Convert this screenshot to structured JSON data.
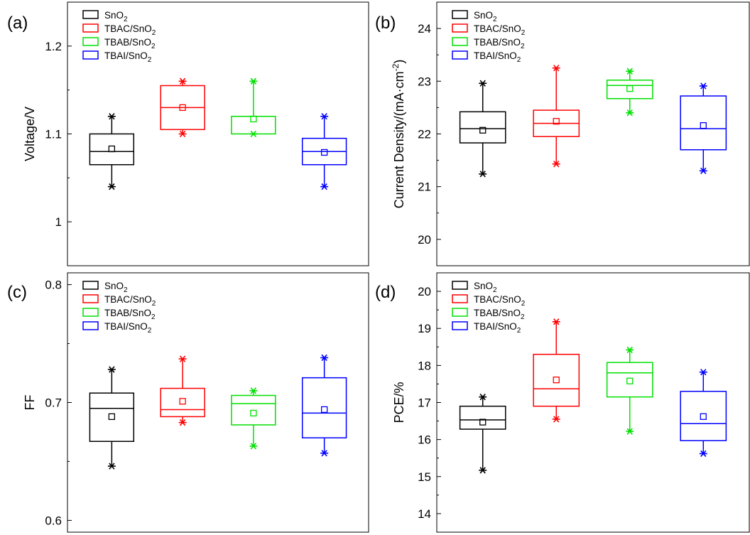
{
  "chart_data": [
    {
      "panel_label": "(a)",
      "type": "box",
      "ylabel": "Voltage/V",
      "ylim": [
        0.95,
        1.25
      ],
      "yticks": [
        1.0,
        1.1,
        1.2
      ],
      "ytick_labels": [
        "1",
        "1.1",
        "1.2"
      ],
      "minor_ticks": true,
      "series": [
        {
          "name": "SnO2",
          "name_base": "SnO",
          "name_sub": "2",
          "color": "#000000",
          "q1": 1.065,
          "median": 1.08,
          "q3": 1.1,
          "mean": 1.083,
          "whisker_low": 1.04,
          "whisker_high": 1.12,
          "min": 1.04,
          "max": 1.12
        },
        {
          "name": "TBAC/SnO2",
          "name_base": "TBAC/SnO",
          "name_sub": "2",
          "color": "#ff0000",
          "q1": 1.105,
          "median": 1.13,
          "q3": 1.155,
          "mean": 1.13,
          "whisker_low": 1.1,
          "whisker_high": 1.16,
          "min": 1.1,
          "max": 1.16
        },
        {
          "name": "TBAB/SnO2",
          "name_base": "TBAB/SnO",
          "name_sub": "2",
          "color": "#00e000",
          "q1": 1.1,
          "median": 1.12,
          "q3": 1.12,
          "mean": 1.117,
          "whisker_low": 1.1,
          "whisker_high": 1.16,
          "min": 1.1,
          "max": 1.16
        },
        {
          "name": "TBAI/SnO2",
          "name_base": "TBAI/SnO",
          "name_sub": "2",
          "color": "#0000ff",
          "q1": 1.065,
          "median": 1.08,
          "q3": 1.095,
          "mean": 1.079,
          "whisker_low": 1.04,
          "whisker_high": 1.12,
          "min": 1.04,
          "max": 1.12
        }
      ]
    },
    {
      "panel_label": "(b)",
      "type": "box",
      "ylabel": "Current Density/(mA·cm⁻²)",
      "ylabel_base": "Current Density/(mA·cm",
      "ylabel_sup": "-2",
      "ylabel_tail": ")",
      "ylim": [
        19.5,
        24.5
      ],
      "yticks": [
        20,
        21,
        22,
        23,
        24
      ],
      "ytick_labels": [
        "20",
        "21",
        "22",
        "23",
        "24"
      ],
      "minor_ticks": true,
      "series": [
        {
          "name": "SnO2",
          "name_base": "SnO",
          "name_sub": "2",
          "color": "#000000",
          "q1": 21.83,
          "median": 22.1,
          "q3": 22.42,
          "mean": 22.07,
          "whisker_low": 21.24,
          "whisker_high": 22.96,
          "min": 21.24,
          "max": 22.96
        },
        {
          "name": "TBAC/SnO2",
          "name_base": "TBAC/SnO",
          "name_sub": "2",
          "color": "#ff0000",
          "q1": 21.95,
          "median": 22.2,
          "q3": 22.45,
          "mean": 22.24,
          "whisker_low": 21.43,
          "whisker_high": 23.25,
          "min": 21.43,
          "max": 23.25
        },
        {
          "name": "TBAB/SnO2",
          "name_base": "TBAB/SnO",
          "name_sub": "2",
          "color": "#00e000",
          "q1": 22.67,
          "median": 22.92,
          "q3": 23.02,
          "mean": 22.86,
          "whisker_low": 22.4,
          "whisker_high": 23.19,
          "min": 22.4,
          "max": 23.19
        },
        {
          "name": "TBAI/SnO2",
          "name_base": "TBAI/SnO",
          "name_sub": "2",
          "color": "#0000ff",
          "q1": 21.7,
          "median": 22.1,
          "q3": 22.72,
          "mean": 22.16,
          "whisker_low": 21.3,
          "whisker_high": 22.91,
          "min": 21.3,
          "max": 22.91
        }
      ]
    },
    {
      "panel_label": "(c)",
      "type": "box",
      "ylabel": "FF",
      "ylim": [
        0.59,
        0.81
      ],
      "yticks": [
        0.6,
        0.7,
        0.8
      ],
      "ytick_labels": [
        "0.6",
        "0.7",
        "0.8"
      ],
      "minor_ticks": true,
      "series": [
        {
          "name": "SnO2",
          "name_base": "SnO",
          "name_sub": "2",
          "color": "#000000",
          "q1": 0.667,
          "median": 0.695,
          "q3": 0.708,
          "mean": 0.688,
          "whisker_low": 0.646,
          "whisker_high": 0.728,
          "min": 0.646,
          "max": 0.728
        },
        {
          "name": "TBAC/SnO2",
          "name_base": "TBAC/SnO",
          "name_sub": "2",
          "color": "#ff0000",
          "q1": 0.688,
          "median": 0.694,
          "q3": 0.712,
          "mean": 0.701,
          "whisker_low": 0.683,
          "whisker_high": 0.737,
          "min": 0.683,
          "max": 0.737
        },
        {
          "name": "TBAB/SnO2",
          "name_base": "TBAB/SnO",
          "name_sub": "2",
          "color": "#00e000",
          "q1": 0.681,
          "median": 0.699,
          "q3": 0.706,
          "mean": 0.691,
          "whisker_low": 0.663,
          "whisker_high": 0.71,
          "min": 0.663,
          "max": 0.71
        },
        {
          "name": "TBAI/SnO2",
          "name_base": "TBAI/SnO",
          "name_sub": "2",
          "color": "#0000ff",
          "q1": 0.67,
          "median": 0.691,
          "q3": 0.721,
          "mean": 0.694,
          "whisker_low": 0.657,
          "whisker_high": 0.738,
          "min": 0.657,
          "max": 0.738
        }
      ]
    },
    {
      "panel_label": "(d)",
      "type": "box",
      "ylabel": "PCE/%",
      "ylim": [
        13.5,
        20.5
      ],
      "yticks": [
        14,
        15,
        16,
        17,
        18,
        19,
        20
      ],
      "ytick_labels": [
        "14",
        "15",
        "16",
        "17",
        "18",
        "19",
        "20"
      ],
      "minor_ticks": true,
      "series": [
        {
          "name": "SnO2",
          "name_base": "SnO",
          "name_sub": "2",
          "color": "#000000",
          "q1": 16.28,
          "median": 16.53,
          "q3": 16.9,
          "mean": 16.47,
          "whisker_low": 15.17,
          "whisker_high": 17.15,
          "min": 15.17,
          "max": 17.15
        },
        {
          "name": "TBAC/SnO2",
          "name_base": "TBAC/SnO",
          "name_sub": "2",
          "color": "#ff0000",
          "q1": 16.9,
          "median": 17.37,
          "q3": 18.3,
          "mean": 17.61,
          "whisker_low": 16.55,
          "whisker_high": 19.18,
          "min": 16.55,
          "max": 19.18
        },
        {
          "name": "TBAB/SnO2",
          "name_base": "TBAB/SnO",
          "name_sub": "2",
          "color": "#00e000",
          "q1": 17.15,
          "median": 17.8,
          "q3": 18.08,
          "mean": 17.58,
          "whisker_low": 16.22,
          "whisker_high": 18.42,
          "min": 16.22,
          "max": 18.42
        },
        {
          "name": "TBAI/SnO2",
          "name_base": "TBAI/SnO",
          "name_sub": "2",
          "color": "#0000ff",
          "q1": 15.97,
          "median": 16.43,
          "q3": 17.3,
          "mean": 16.62,
          "whisker_low": 15.62,
          "whisker_high": 17.82,
          "min": 15.62,
          "max": 17.82
        }
      ]
    }
  ]
}
